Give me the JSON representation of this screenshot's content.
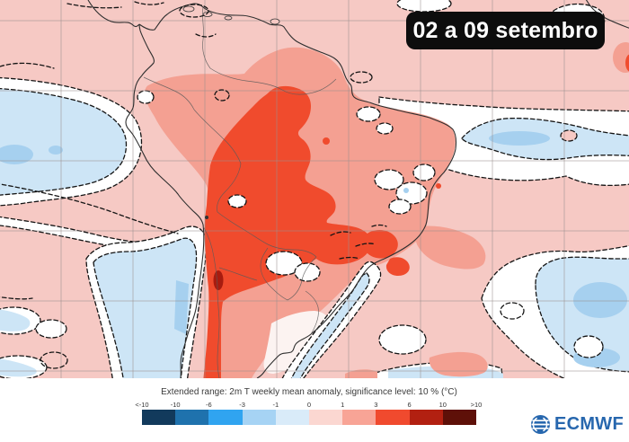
{
  "title_badge": {
    "label": "02 a 09 setembro",
    "bg": "#0d0d0d",
    "text_color": "#ffffff"
  },
  "legend": {
    "title": "Extended range: 2m T weekly mean anomaly, significance level: 10 % (°C)",
    "ticks": [
      "<-10",
      "-10",
      "-6",
      "-3",
      "-1",
      "0",
      "1",
      "3",
      "6",
      "10",
      ">10"
    ],
    "segment_colors": [
      "#123a5c",
      "#1f72ad",
      "#30a4f0",
      "#a6d3f4",
      "#d9ebf9",
      "#fbd7d1",
      "#f8a496",
      "#f04a2e",
      "#b22011",
      "#5e1008"
    ]
  },
  "logo": {
    "label": "ECMWF",
    "color": "#2767ae"
  },
  "map": {
    "description": "2m temperature weekly mean anomaly over South America, warm anomaly core over Bolivia/central Brazil and Chile, cool anomalies over adjacent Pacific and Atlantic ocean areas, non-significant zones in white with dashed contours",
    "colors": {
      "background": "#f6c9c4",
      "anomaly_1_3": "#f4a092",
      "anomaly_3_6": "#f04b2d",
      "anomaly_6_10": "#a81c0f",
      "anomaly_m1_0": "#cde5f6",
      "anomaly_m3_m1": "#a6d0ef",
      "not_significant": "#ffffff",
      "grid": "#9b8f8e",
      "coastline": "#2e2e2e",
      "contour": "#141414"
    }
  }
}
